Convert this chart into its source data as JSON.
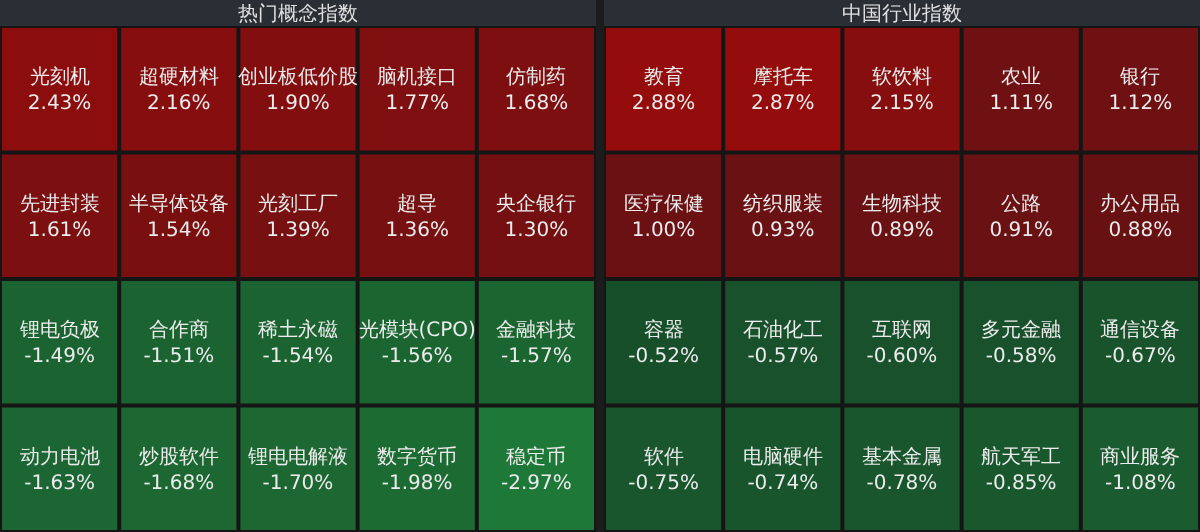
{
  "chart_data": [
    {
      "type": "other",
      "title": "热门概念指数",
      "categories": [
        "光刻机",
        "超硬材料",
        "创业板低价股",
        "脑机接口",
        "仿制药",
        "先进封装",
        "半导体设备",
        "光刻工厂",
        "超导",
        "央企银行",
        "锂电负极",
        "合作商",
        "稀土永磁",
        "光模块(CPO)",
        "金融科技",
        "动力电池",
        "炒股软件",
        "锂电电解液",
        "数字货币",
        "稳定币"
      ],
      "values": [
        2.43,
        2.16,
        1.9,
        1.77,
        1.68,
        1.61,
        1.54,
        1.39,
        1.36,
        1.3,
        -1.49,
        -1.51,
        -1.54,
        -1.56,
        -1.57,
        -1.63,
        -1.68,
        -1.7,
        -1.98,
        -2.97
      ],
      "value_labels": [
        "2.43%",
        "2.16%",
        "1.90%",
        "1.77%",
        "1.68%",
        "1.61%",
        "1.54%",
        "1.39%",
        "1.36%",
        "1.30%",
        "-1.49%",
        "-1.51%",
        "-1.54%",
        "-1.56%",
        "-1.57%",
        "-1.63%",
        "-1.68%",
        "-1.70%",
        "-1.98%",
        "-2.97%"
      ]
    },
    {
      "type": "other",
      "title": "中国行业指数",
      "categories": [
        "教育",
        "摩托车",
        "软饮料",
        "农业",
        "银行",
        "医疗保健",
        "纺织服装",
        "生物科技",
        "公路",
        "办公用品",
        "容器",
        "石油化工",
        "互联网",
        "多元金融",
        "通信设备",
        "软件",
        "电脑硬件",
        "基本金属",
        "航天军工",
        "商业服务"
      ],
      "values": [
        2.88,
        2.87,
        2.15,
        1.11,
        1.12,
        1.0,
        0.93,
        0.89,
        0.91,
        0.88,
        -0.52,
        -0.57,
        -0.6,
        -0.58,
        -0.67,
        -0.75,
        -0.74,
        -0.78,
        -0.85,
        -1.08
      ],
      "value_labels": [
        "2.88%",
        "2.87%",
        "2.15%",
        "1.11%",
        "1.12%",
        "1.00%",
        "0.93%",
        "0.89%",
        "0.91%",
        "0.88%",
        "-0.52%",
        "-0.57%",
        "-0.60%",
        "-0.58%",
        "-0.67%",
        "-0.75%",
        "-0.74%",
        "-0.78%",
        "-0.85%",
        "-1.08%"
      ]
    }
  ]
}
